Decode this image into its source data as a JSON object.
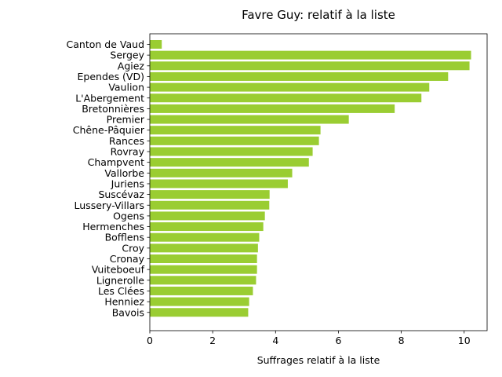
{
  "chart_data": {
    "type": "bar",
    "orientation": "horizontal",
    "title": "Favre Guy: relatif à la liste",
    "xlabel": "Suffrages relatif à la liste",
    "ylabel": "",
    "xlim": [
      0,
      10.73
    ],
    "xticks": [
      0,
      2,
      4,
      6,
      8,
      10
    ],
    "grid": false,
    "bar_color": "#9acd32",
    "categories": [
      "Canton de Vaud",
      "Sergey",
      "Agiez",
      "Ependes (VD)",
      "Vaulion",
      "L'Abergement",
      "Bretonnières",
      "Premier",
      "Chêne-Pâquier",
      "Rances",
      "Rovray",
      "Champvent",
      "Vallorbe",
      "Juriens",
      "Suscévaz",
      "Lussery-Villars",
      "Ogens",
      "Hermenches",
      "Bofflens",
      "Croy",
      "Cronay",
      "Vuiteboeuf",
      "Lignerolle",
      "Les Clées",
      "Henniez",
      "Bavois"
    ],
    "values": [
      0.38,
      10.22,
      10.17,
      9.49,
      8.89,
      8.64,
      7.79,
      6.33,
      5.43,
      5.38,
      5.18,
      5.06,
      4.53,
      4.39,
      3.81,
      3.8,
      3.66,
      3.61,
      3.48,
      3.44,
      3.41,
      3.41,
      3.38,
      3.28,
      3.16,
      3.13
    ]
  }
}
